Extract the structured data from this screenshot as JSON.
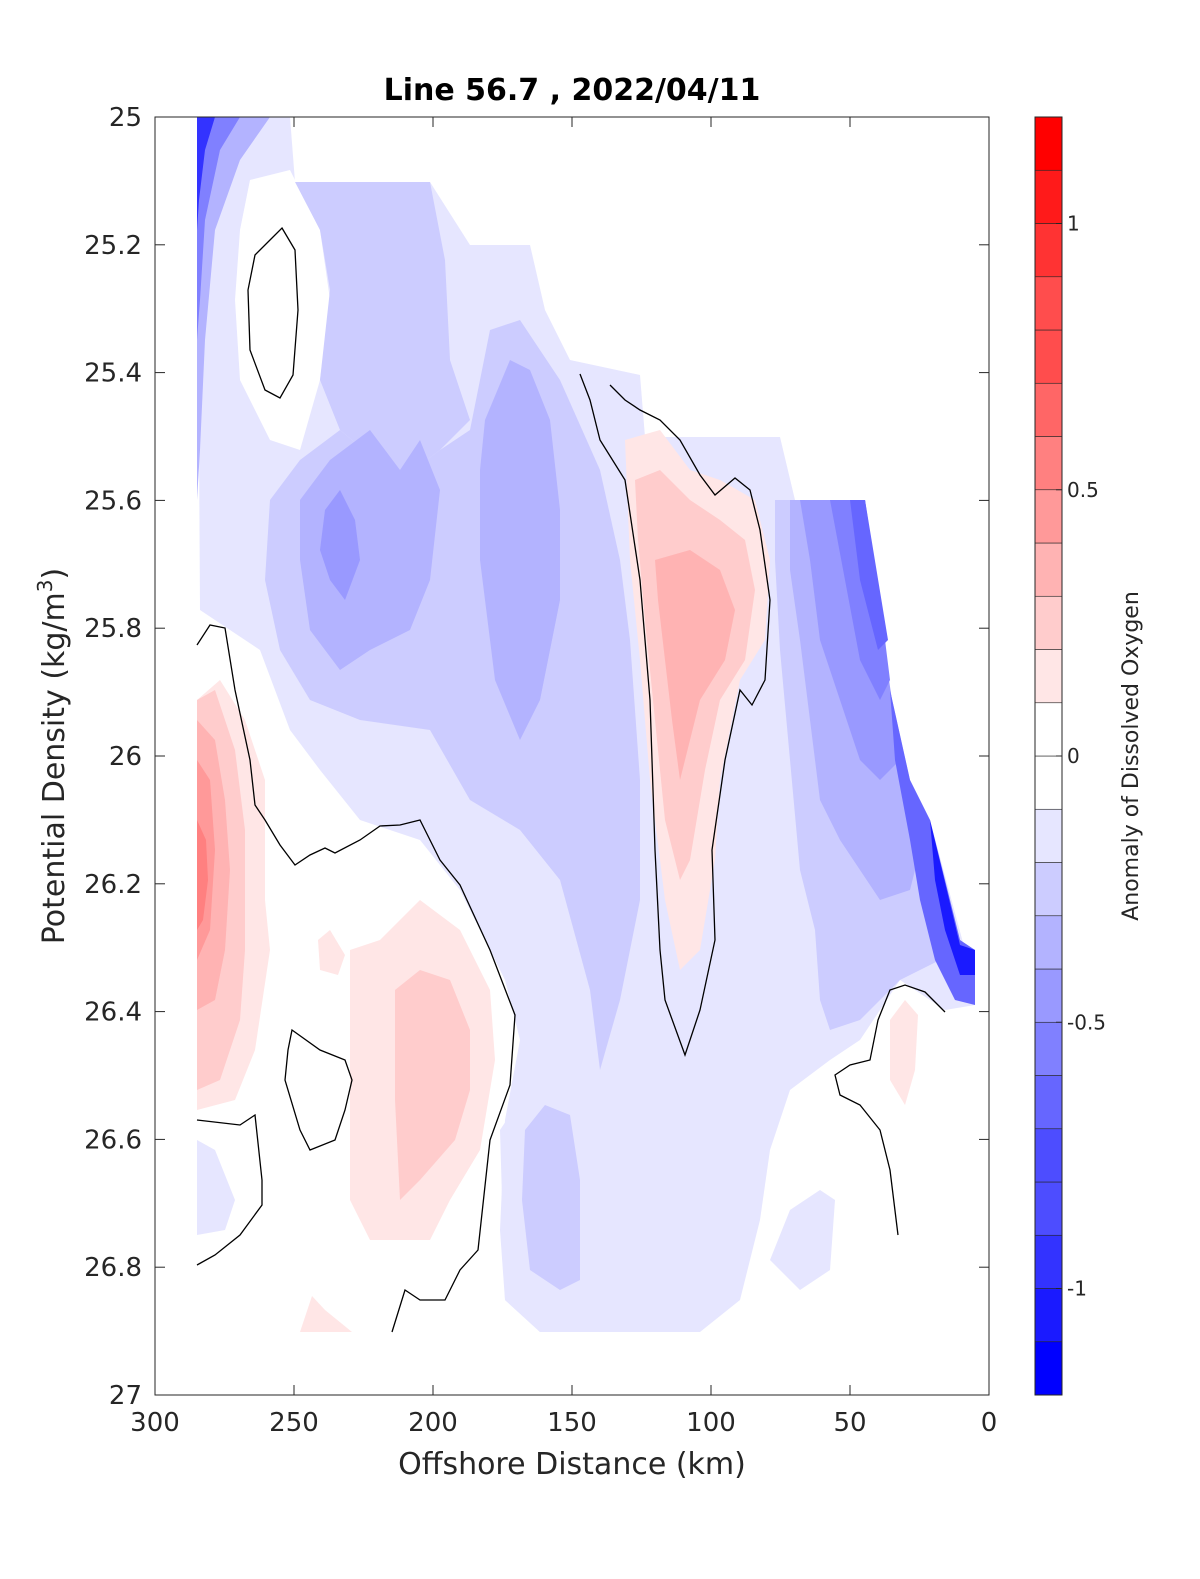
{
  "chart_data": {
    "type": "contourf",
    "title": "Line 56.7 , 2022/04/11",
    "xlabel": "Offshore Distance (km)",
    "ylabel_main": "Potential Density (kg/m",
    "ylabel_sup": "3",
    "ylabel_tail": ")",
    "colorbar_label": "Anomaly of Dissolved Oxygen",
    "xlim": [
      300,
      0
    ],
    "ylim": [
      27,
      25
    ],
    "x_reversed": true,
    "y_reversed": true,
    "xticks": [
      300,
      250,
      200,
      150,
      100,
      50,
      0
    ],
    "yticks": [
      25,
      25.2,
      25.4,
      25.6,
      25.8,
      26,
      26.2,
      26.4,
      26.6,
      26.8,
      27
    ],
    "colorbar": {
      "range": [
        -1.2,
        1.2
      ],
      "ticks": [
        1,
        0.5,
        0,
        -0.5,
        -1
      ],
      "tick_labels": [
        "1",
        "0.5",
        "0",
        "-0.5",
        "-1"
      ],
      "colors_bottom_to_top": [
        "#0000ff",
        "#1a1aff",
        "#3333ff",
        "#4d4dff",
        "#6666ff",
        "#8080ff",
        "#9999ff",
        "#b3b3ff",
        "#ccccff",
        "#e6e6ff",
        "#ffffff",
        "#ffe6e6",
        "#ffcccc",
        "#ffb3b3",
        "#ff9999",
        "#ff8080",
        "#ff6666",
        "#ff4d4d",
        "#ff3333",
        "#ff1a1a",
        "#ff0000"
      ]
    },
    "features": [
      {
        "name": "negative core near coast",
        "x": 60,
        "y": 25.7,
        "value": -0.55
      },
      {
        "name": "negative anomaly band offshore",
        "x": 220,
        "y": 25.7,
        "value": -0.35
      },
      {
        "name": "positive anomaly tongue",
        "x": 110,
        "y": 25.8,
        "value": 0.35
      },
      {
        "name": "positive anomaly at west edge",
        "x": 280,
        "y": 26.2,
        "value": 0.5
      },
      {
        "name": "positive anomaly deep",
        "x": 200,
        "y": 26.55,
        "value": 0.2
      },
      {
        "name": "strong negative near surface west edge",
        "x": 285,
        "y": 25.05,
        "value": -0.8
      },
      {
        "name": "strong negative inshore deep",
        "x": 12,
        "y": 26.3,
        "value": -1.0
      }
    ],
    "grid": false
  }
}
